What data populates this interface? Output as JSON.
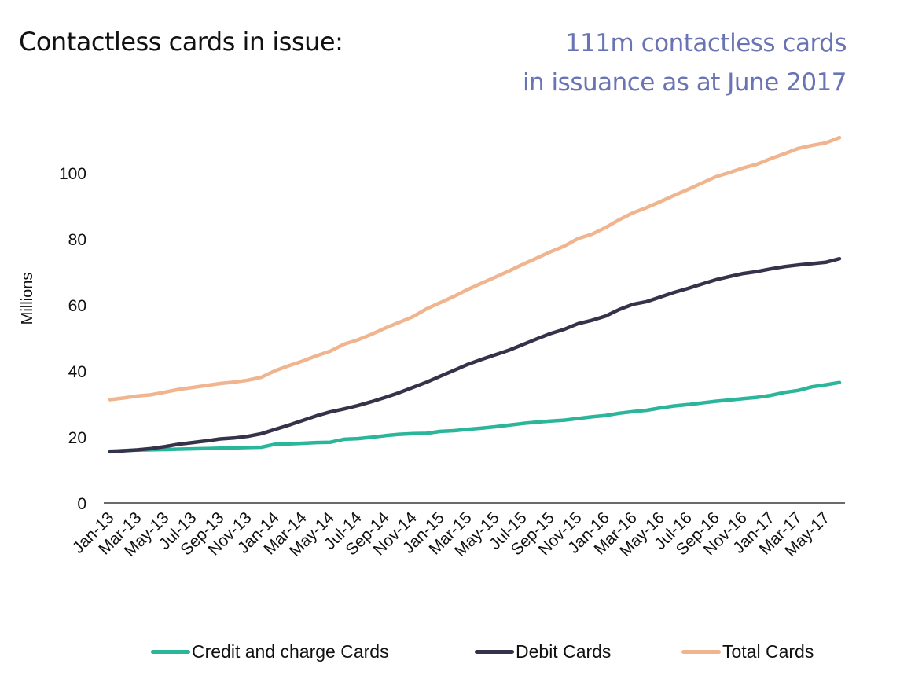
{
  "header": {
    "title": "Contactless cards in issue:",
    "subtitle_line1": "111m contactless cards",
    "subtitle_line2": "in issuance as at June 2017"
  },
  "chart_data": {
    "type": "line",
    "title": "Contactless cards in issue:",
    "xlabel": "",
    "ylabel": "Millions",
    "ylim": [
      0,
      110
    ],
    "yticks": [
      0,
      20,
      40,
      60,
      80,
      100
    ],
    "grid": false,
    "legend_position": "bottom",
    "x": [
      "Jan-13",
      "Feb-13",
      "Mar-13",
      "Apr-13",
      "May-13",
      "Jun-13",
      "Jul-13",
      "Aug-13",
      "Sep-13",
      "Oct-13",
      "Nov-13",
      "Dec-13",
      "Jan-14",
      "Feb-14",
      "Mar-14",
      "Apr-14",
      "May-14",
      "Jun-14",
      "Jul-14",
      "Aug-14",
      "Sep-14",
      "Oct-14",
      "Nov-14",
      "Dec-14",
      "Jan-15",
      "Feb-15",
      "Mar-15",
      "Apr-15",
      "May-15",
      "Jun-15",
      "Jul-15",
      "Aug-15",
      "Sep-15",
      "Oct-15",
      "Nov-15",
      "Dec-15",
      "Jan-16",
      "Feb-16",
      "Mar-16",
      "Apr-16",
      "May-16",
      "Jun-16",
      "Jul-16",
      "Aug-16",
      "Sep-16",
      "Oct-16",
      "Nov-16",
      "Dec-16",
      "Jan-17",
      "Feb-17",
      "Mar-17",
      "Apr-17",
      "May-17",
      "Jun-17"
    ],
    "xtick_labels": [
      "Jan-13",
      "Mar-13",
      "May-13",
      "Jul-13",
      "Sep-13",
      "Nov-13",
      "Jan-14",
      "Mar-14",
      "May-14",
      "Jul-14",
      "Sep-14",
      "Nov-14",
      "Jan-15",
      "Mar-15",
      "May-15",
      "Jul-15",
      "Sep-15",
      "Nov-15",
      "Jan-16",
      "Mar-16",
      "May-16",
      "Jul-16",
      "Sep-16",
      "Nov-16",
      "Jan-17",
      "Mar-17",
      "May-17"
    ],
    "series": [
      {
        "name": "Credit and charge Cards",
        "color": "#2bb59a",
        "values": [
          15.7,
          15.9,
          16.0,
          16.1,
          16.2,
          16.3,
          16.4,
          16.5,
          16.6,
          16.7,
          16.8,
          16.9,
          17.8,
          17.9,
          18.1,
          18.3,
          18.4,
          19.3,
          19.5,
          19.9,
          20.4,
          20.8,
          21.0,
          21.1,
          21.7,
          21.9,
          22.3,
          22.7,
          23.1,
          23.6,
          24.1,
          24.5,
          24.8,
          25.1,
          25.6,
          26.1,
          26.5,
          27.2,
          27.7,
          28.1,
          28.8,
          29.4,
          29.8,
          30.3,
          30.8,
          31.2,
          31.6,
          32.0,
          32.6,
          33.5,
          34.1,
          35.2,
          35.8,
          36.5
        ]
      },
      {
        "name": "Debit Cards",
        "color": "#35334a",
        "values": [
          15.5,
          15.8,
          16.1,
          16.5,
          17.1,
          17.8,
          18.3,
          18.8,
          19.4,
          19.7,
          20.2,
          21.0,
          22.3,
          23.6,
          25.0,
          26.4,
          27.6,
          28.5,
          29.5,
          30.7,
          32.0,
          33.4,
          35.0,
          36.6,
          38.4,
          40.2,
          42.0,
          43.5,
          44.9,
          46.3,
          48.0,
          49.7,
          51.3,
          52.6,
          54.3,
          55.3,
          56.6,
          58.6,
          60.2,
          61.0,
          62.4,
          63.8,
          65.0,
          66.3,
          67.6,
          68.6,
          69.5,
          70.1,
          70.9,
          71.6,
          72.1,
          72.5,
          72.9,
          74.0
        ]
      },
      {
        "name": "Total Cards",
        "color": "#f0b48e",
        "values": [
          31.3,
          31.8,
          32.4,
          32.8,
          33.6,
          34.4,
          35.0,
          35.6,
          36.2,
          36.6,
          37.2,
          38.1,
          40.1,
          41.6,
          43.0,
          44.6,
          46.0,
          48.1,
          49.4,
          51.1,
          53.0,
          54.7,
          56.4,
          58.8,
          60.7,
          62.6,
          64.7,
          66.6,
          68.4,
          70.3,
          72.3,
          74.2,
          76.1,
          77.8,
          80.1,
          81.4,
          83.4,
          85.8,
          87.9,
          89.5,
          91.3,
          93.2,
          95.0,
          96.9,
          98.8,
          100.1,
          101.5,
          102.6,
          104.3,
          105.8,
          107.4,
          108.3,
          109.1,
          110.7
        ]
      }
    ]
  },
  "legend": [
    {
      "label": "Credit and charge Cards",
      "color": "#2bb59a"
    },
    {
      "label": "Debit Cards",
      "color": "#35334a"
    },
    {
      "label": "Total Cards",
      "color": "#f0b48e"
    }
  ]
}
